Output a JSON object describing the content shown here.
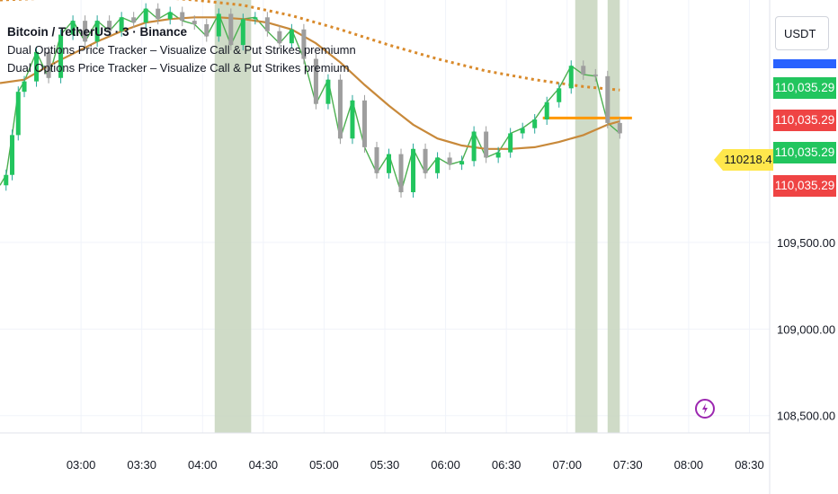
{
  "legend": {
    "title": "Bitcoin / TetherUS · 3 · Binance",
    "indicator_1": "Dual Options Price Tracker – Visualize Call & Put Strikes premiumn",
    "indicator_2": "Dual Options Price Tracker – Visualize Call & Put Strikes premium"
  },
  "toolbar": {
    "currency": "USDT"
  },
  "price_scale": {
    "tags": [
      {
        "text": "110,035.29",
        "kind": "green"
      },
      {
        "text": "110,035.29",
        "kind": "red"
      },
      {
        "text": "110,035.29",
        "kind": "green"
      },
      {
        "text": "110,035.29",
        "kind": "red"
      }
    ],
    "callout": "110218.4"
  },
  "colors": {
    "up": "#26a69a",
    "green_line": "#4caf50",
    "ma_solid": "#c8893a",
    "ma_dotted": "#d98a2b",
    "session_shade": "#c7d5bd",
    "strike_line": "#ff9800",
    "grid": "#f0f3fa"
  },
  "chart_data": {
    "type": "line",
    "title": "Bitcoin / TetherUS · 3 · Binance",
    "x_ticks": [
      "03:00",
      "03:30",
      "04:00",
      "04:30",
      "05:00",
      "05:30",
      "06:00",
      "06:30",
      "07:00",
      "07:30",
      "08:00",
      "08:30"
    ],
    "y_ticks": [
      109500,
      109000,
      108500
    ],
    "ylim": [
      108400,
      110900
    ],
    "x_range_minutes": [
      140,
      520
    ],
    "shaded_sessions": [
      [
        246,
        264
      ],
      [
        424,
        435
      ],
      [
        440,
        446
      ]
    ],
    "series": [
      {
        "x": [
          140,
          143,
          146,
          149,
          152,
          158,
          164,
          170,
          176,
          182,
          188,
          194,
          200,
          206,
          212,
          218,
          224,
          230,
          236,
          242,
          248,
          254,
          260,
          266,
          272,
          278,
          284,
          290,
          296,
          302,
          308,
          314,
          320,
          326,
          332,
          338,
          344,
          350,
          356,
          362,
          368,
          374,
          380,
          386,
          392,
          398,
          404,
          410,
          416,
          422,
          428,
          434,
          440,
          446
        ],
        "y": [
          109830,
          109890,
          110120,
          110370,
          110430,
          110600,
          110450,
          110700,
          110780,
          110660,
          110780,
          110720,
          110800,
          110770,
          110850,
          110790,
          110830,
          110780,
          110760,
          110690,
          110820,
          110640,
          110790,
          110800,
          110720,
          110650,
          110730,
          110560,
          110300,
          110440,
          110100,
          110320,
          110050,
          109900,
          110010,
          109790,
          110040,
          109900,
          109990,
          109950,
          109970,
          110140,
          109990,
          110020,
          110130,
          110160,
          110210,
          110310,
          110390,
          110520,
          110470,
          110460,
          110190,
          110130
        ]
      },
      {
        "x": [
          140,
          152,
          164,
          176,
          188,
          200,
          212,
          224,
          236,
          248,
          260,
          272,
          284,
          296,
          308,
          320,
          332,
          344,
          356,
          368,
          380,
          392,
          404,
          416,
          428,
          440,
          446
        ],
        "y": [
          110420,
          110440,
          110520,
          110590,
          110660,
          110720,
          110770,
          110790,
          110800,
          110800,
          110790,
          110770,
          110730,
          110650,
          110540,
          110410,
          110290,
          110180,
          110100,
          110060,
          110040,
          110040,
          110050,
          110080,
          110120,
          110180,
          110200
        ]
      },
      {
        "x": [
          140,
          164,
          188,
          212,
          236,
          260,
          284,
          308,
          332,
          356,
          380,
          404,
          428,
          446
        ],
        "y": [
          110900,
          110910,
          110920,
          110920,
          110900,
          110870,
          110810,
          110730,
          110640,
          110560,
          110490,
          110440,
          110400,
          110380
        ]
      }
    ],
    "current_price": 110035.29,
    "strike_level": 110218.4
  }
}
